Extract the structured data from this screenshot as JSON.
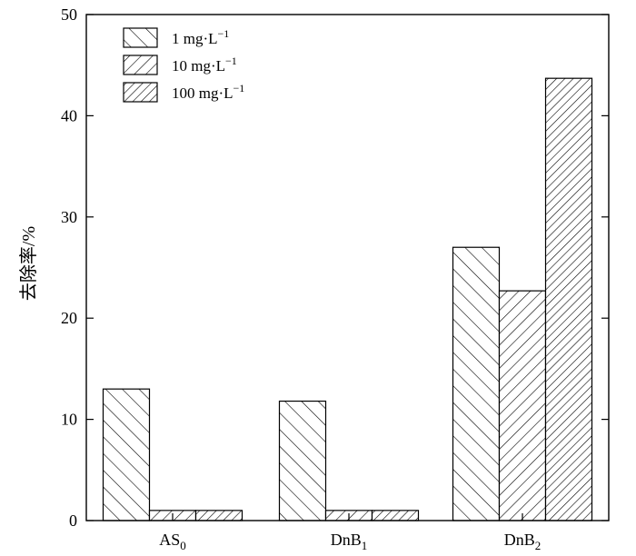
{
  "chart_data": {
    "type": "bar",
    "title": "",
    "xlabel": "",
    "ylabel": "去除率/%",
    "ylim": [
      0,
      50
    ],
    "yticks": [
      "0",
      "10",
      "20",
      "30",
      "40",
      "50"
    ],
    "categories": [
      {
        "base": "AS",
        "sub": "0"
      },
      {
        "base": "DnB",
        "sub": "1"
      },
      {
        "base": "DnB",
        "sub": "2"
      }
    ],
    "series": [
      {
        "name": "1 mg·L",
        "sup": "−1",
        "pattern": "backslash",
        "values": [
          13.0,
          11.8,
          27.0
        ]
      },
      {
        "name": "10 mg·L",
        "sup": "−1",
        "pattern": "slash",
        "values": [
          1.0,
          1.0,
          22.7
        ]
      },
      {
        "name": "100 mg·L",
        "sup": "−1",
        "pattern": "slash-dense",
        "values": [
          1.0,
          1.0,
          43.7
        ]
      }
    ],
    "legend_position": "top-left",
    "grid": false
  }
}
